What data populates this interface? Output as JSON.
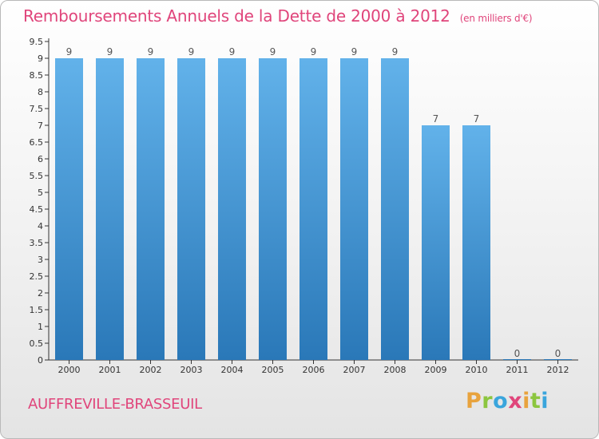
{
  "title": "Remboursements Annuels de la Dette de 2000 à 2012",
  "subtitle": "(en milliers d'€)",
  "commune": "AUFFREVILLE-BRASSEUIL",
  "logo": {
    "letters": [
      "P",
      "r",
      "o",
      "x",
      "i",
      "t",
      "i"
    ],
    "colors": [
      "#e8a33d",
      "#8cc63f",
      "#3aa5dc",
      "#e0457b",
      "#e8a33d",
      "#8cc63f",
      "#3aa5dc"
    ]
  },
  "colors": {
    "bar_top": "#62b2ea",
    "bar_bottom": "#2a78b8",
    "title": "#e0457b",
    "axis": "#333333"
  },
  "chart_data": {
    "type": "bar",
    "title": "Remboursements Annuels de la Dette de 2000 à 2012",
    "subtitle": "(en milliers d'€)",
    "categories": [
      "2000",
      "2001",
      "2002",
      "2003",
      "2004",
      "2005",
      "2006",
      "2007",
      "2008",
      "2009",
      "2010",
      "2011",
      "2012"
    ],
    "values": [
      9,
      9,
      9,
      9,
      9,
      9,
      9,
      9,
      9,
      7,
      7,
      0,
      0
    ],
    "ylim": [
      0,
      9.5
    ],
    "yticks": [
      "0",
      "0.5",
      "1",
      "1.5",
      "2",
      "2.5",
      "3",
      "3.5",
      "4",
      "4.5",
      "5",
      "5.5",
      "6",
      "6.5",
      "7",
      "7.5",
      "8",
      "8.5",
      "9",
      "9.5"
    ],
    "grid": false
  }
}
